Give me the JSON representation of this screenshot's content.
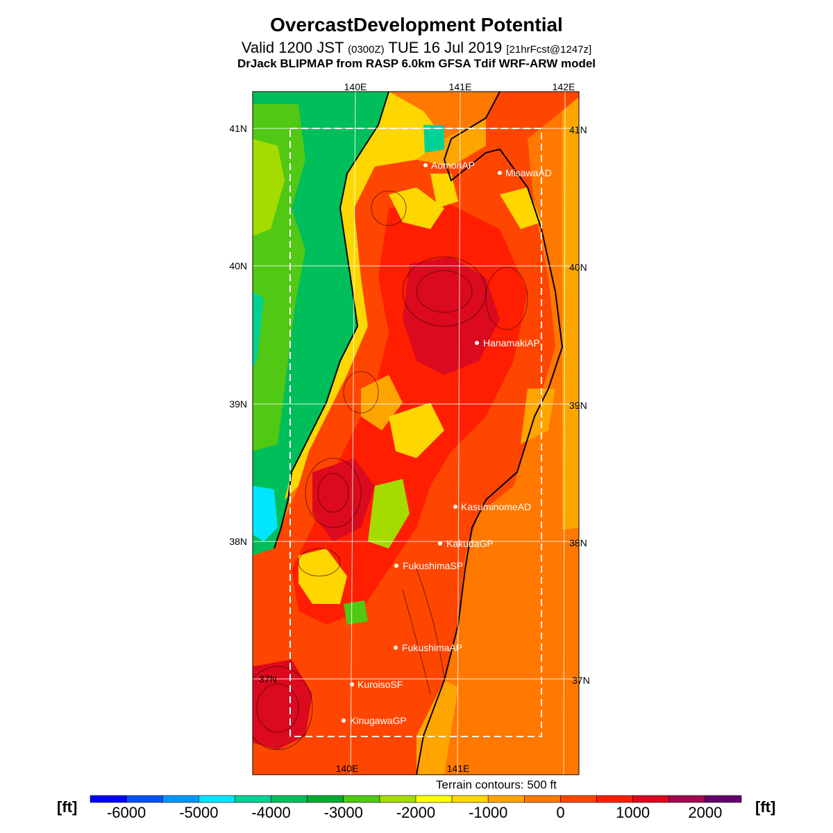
{
  "header": {
    "title": "OvercastDevelopment Potential",
    "valid_prefix": "Valid 1200 JST",
    "utc": "(0300Z)",
    "valid_date": "TUE 16 Jul 2019",
    "forecast": "[21hrFcst@1247z]",
    "model": "DrJack BLIPMAP from RASP 6.0km GFSA Tdif WRF-ARW model"
  },
  "map": {
    "lon_labels_top": [
      "140E",
      "141E",
      "142E"
    ],
    "lon_labels_bottom": [
      "140E",
      "141E"
    ],
    "lat_labels_left": [
      "41N",
      "40N",
      "39N",
      "38N",
      "37N"
    ],
    "lat_labels_right": [
      "41N",
      "40N",
      "39N",
      "38N",
      "37N"
    ],
    "stations": [
      {
        "name": "AomoriAP"
      },
      {
        "name": "MisawaAD"
      },
      {
        "name": "HanamakiAP"
      },
      {
        "name": "KasuminomeAD"
      },
      {
        "name": "KakudaGP"
      },
      {
        "name": "FukushimaSP"
      },
      {
        "name": "FukushimaAP"
      },
      {
        "name": "KuroisoSF"
      },
      {
        "name": "KinugawaGP"
      }
    ]
  },
  "footer": {
    "contour_note": "Terrain contours: 500 ft",
    "unit_left": "[ft]",
    "unit_right": "[ft]"
  },
  "colorbar": {
    "colors": [
      "#0000ff",
      "#0050ff",
      "#0096ff",
      "#00e6ff",
      "#00d296",
      "#00be5a",
      "#00aa32",
      "#50c814",
      "#a5dc00",
      "#ffff00",
      "#ffd700",
      "#ffa500",
      "#ff7800",
      "#ff4600",
      "#ff1e00",
      "#dc0a1e",
      "#a00a50",
      "#64006e"
    ],
    "labels": [
      "-6000",
      "-5000",
      "-4000",
      "-3000",
      "-2000",
      "-1000",
      "0",
      "1000",
      "2000"
    ]
  }
}
